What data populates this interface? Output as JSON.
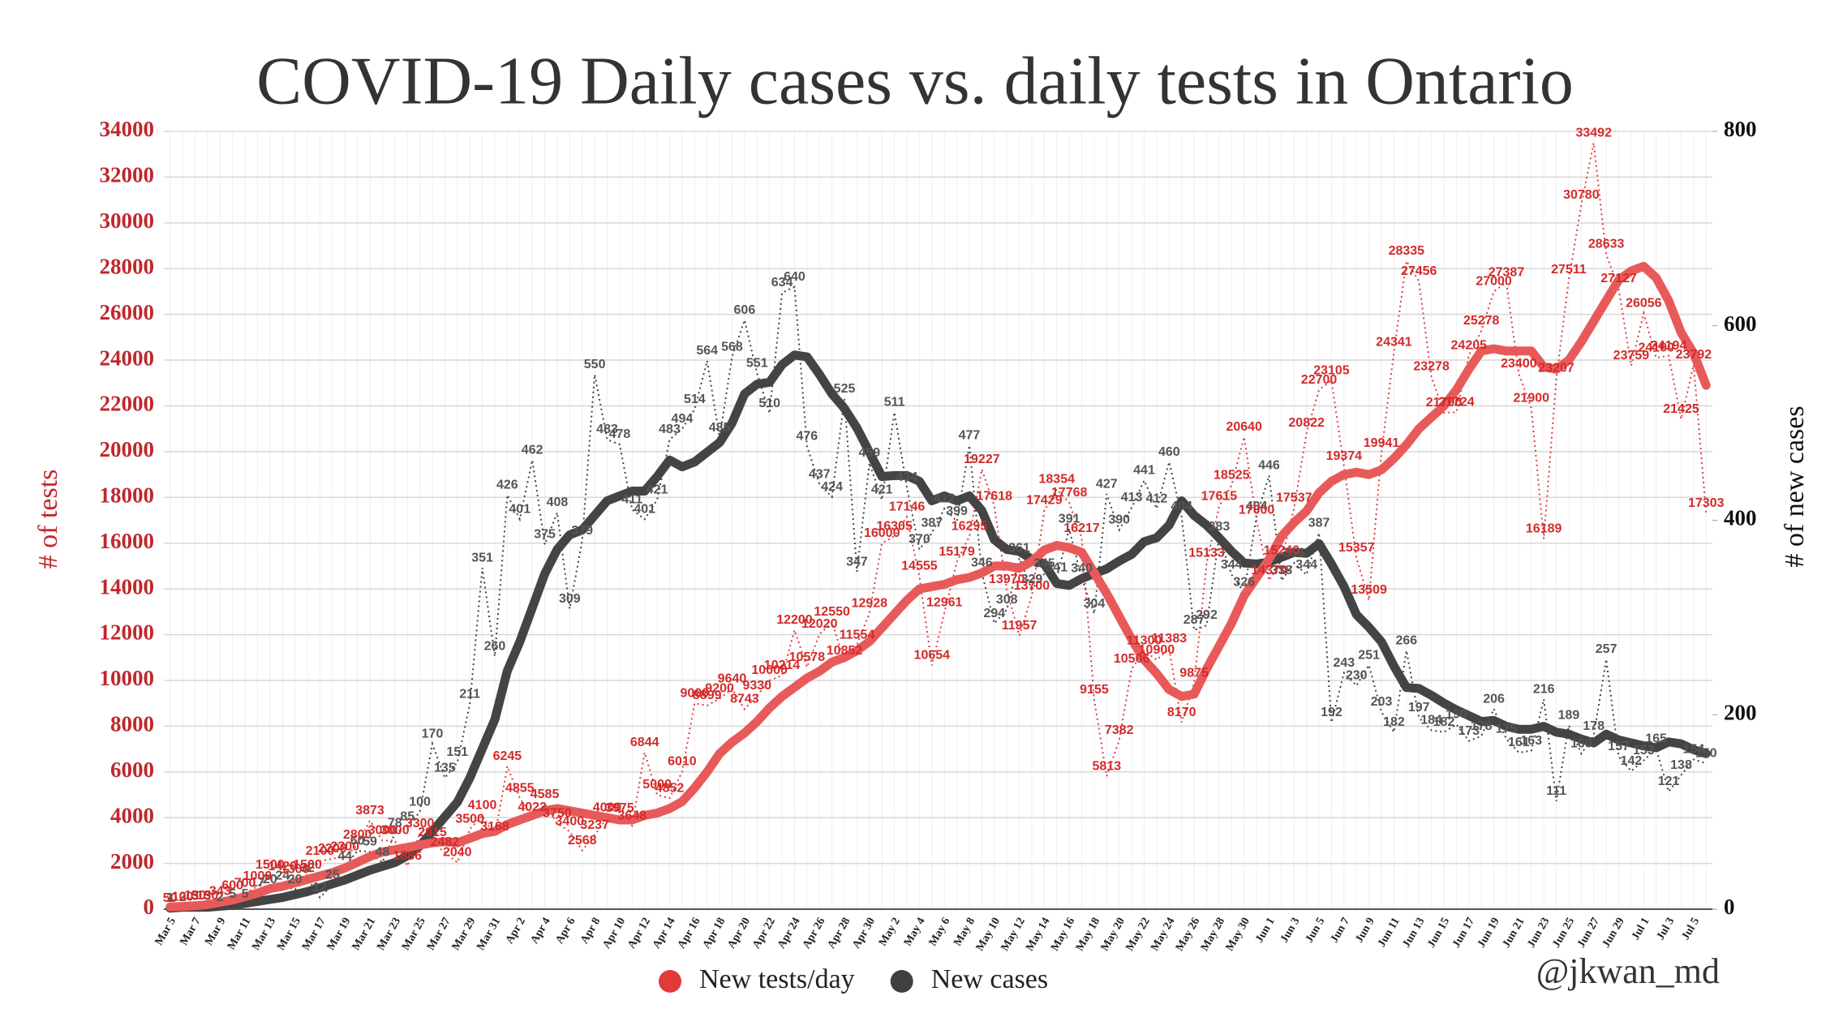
{
  "chart_data": {
    "type": "line",
    "title": "COVID-19 Daily cases vs. daily tests in Ontario",
    "y_label": "# of tests",
    "y2_label": "# of new cases",
    "credit": "@jkwan_md",
    "categories": [
      "Mar 5",
      null,
      "Mar 7",
      null,
      "Mar 9",
      null,
      "Mar 11",
      null,
      "Mar 13",
      null,
      "Mar 15",
      null,
      "Mar 17",
      null,
      "Mar 19",
      null,
      "Mar 21",
      null,
      "Mar 23",
      null,
      "Mar 25",
      null,
      "Mar 27",
      null,
      "Mar 29",
      null,
      "Mar 31",
      null,
      "Apr 2",
      null,
      "Apr 4",
      null,
      "Apr 6",
      null,
      "Apr 8",
      null,
      "Apr 10",
      null,
      "Apr 12",
      null,
      "Apr 14",
      null,
      "Apr 16",
      null,
      "Apr 18",
      null,
      "Apr 20",
      null,
      "Apr 22",
      null,
      "Apr 24",
      null,
      "Apr 26",
      null,
      "Apr 28",
      null,
      "Apr 30",
      null,
      "May 2",
      null,
      "May 4",
      null,
      "May 6",
      null,
      "May 8",
      null,
      "May 10",
      null,
      "May 12",
      null,
      "May 14",
      null,
      "May 16",
      null,
      "May 18",
      null,
      "May 20",
      null,
      "May 22",
      null,
      "May 24",
      null,
      "May 26",
      null,
      "May 28",
      null,
      "May 30",
      null,
      "Jun 1",
      null,
      "Jun 3",
      null,
      "Jun 5",
      null,
      "Jun 7",
      null,
      "Jun 9",
      null,
      "Jun 11",
      null,
      "Jun 13",
      null,
      "Jun 15",
      null,
      "Jun 17",
      null,
      "Jun 19",
      null,
      "Jun 21",
      null,
      "Jun 23",
      null,
      "Jun 25",
      null,
      "Jun 27",
      null,
      "Jun 29",
      null,
      "Jul 1",
      null,
      "Jul 3",
      null,
      "Jul 5",
      null
    ],
    "series": [
      {
        "name": "New tests/day",
        "color": "#e03a3a",
        "avg_color": "#e85a5a",
        "label_color": "#d42a2a",
        "values": [
          50,
          100,
          150,
          150,
          343,
          600,
          700,
          1000,
          1500,
          1420,
          1300,
          1500,
          2100,
          2200,
          2300,
          2800,
          3873,
          3000,
          3000,
          1886,
          3300,
          2915,
          2482,
          2040,
          3500,
          4100,
          3168,
          6245,
          4855,
          4022,
          4585,
          3750,
          3400,
          2568,
          3237,
          4000,
          3975,
          3648,
          6844,
          5000,
          4852,
          6010,
          9000,
          8899,
          9200,
          9640,
          8743,
          9330,
          10000,
          10214,
          12200,
          10578,
          12020,
          12550,
          10852,
          11554,
          12928,
          16000,
          16305,
          17146,
          14555,
          10654,
          12961,
          15179,
          16295,
          19227,
          17618,
          13970,
          11957,
          13700,
          17429,
          18354,
          17768,
          16217,
          9155,
          5813,
          7382,
          10506,
          11300,
          10900,
          11383,
          8170,
          9875,
          15133,
          17615,
          18525,
          20640,
          17000,
          14370,
          15240,
          17537,
          20822,
          22700,
          23105,
          19374,
          15357,
          13509,
          19941,
          24341,
          28335,
          27456,
          23278,
          21700,
          21724,
          24205,
          25278,
          27000,
          27387,
          23400,
          21900,
          16189,
          23207,
          27511,
          30780,
          33492,
          28633,
          27127,
          23759,
          26056,
          24100,
          24194,
          21425,
          23792,
          17303
        ],
        "avg_values": [
          100,
          120,
          150,
          200,
          300,
          400,
          550,
          700,
          900,
          1000,
          1150,
          1300,
          1450,
          1600,
          1800,
          2050,
          2300,
          2500,
          2600,
          2700,
          2800,
          2900,
          2950,
          2900,
          3100,
          3300,
          3400,
          3700,
          3900,
          4100,
          4300,
          4400,
          4300,
          4200,
          4100,
          4000,
          3900,
          3900,
          4100,
          4200,
          4400,
          4700,
          5300,
          6000,
          6800,
          7300,
          7700,
          8200,
          8800,
          9300,
          9700,
          10100,
          10400,
          10800,
          11000,
          11300,
          11700,
          12300,
          12900,
          13500,
          14000,
          14100,
          14200,
          14400,
          14500,
          14700,
          15000,
          15000,
          14900,
          15200,
          15700,
          15900,
          15800,
          15600,
          14700,
          13800,
          12800,
          11800,
          10900,
          10300,
          9600,
          9300,
          9400,
          10500,
          11500,
          12500,
          13700,
          14500,
          15300,
          16300,
          16900,
          17400,
          18200,
          18700,
          19000,
          19100,
          19000,
          19200,
          19700,
          20300,
          21000,
          21500,
          22000,
          22700,
          23600,
          24400,
          24500,
          24400,
          24400,
          24400,
          23700,
          23600,
          24000,
          24800,
          25700,
          26600,
          27500,
          27900,
          28100,
          27600,
          26600,
          25200,
          24300,
          22900
        ]
      },
      {
        "name": "New cases",
        "color": "#404040",
        "avg_color": "#444444",
        "label_color": "#555555",
        "axis": "y2",
        "values": [
          1,
          2,
          3,
          3,
          2,
          5,
          5,
          17,
          20,
          24,
          20,
          32,
          12,
          25,
          44,
          60,
          59,
          48,
          78,
          85,
          100,
          170,
          135,
          151,
          211,
          351,
          260,
          426,
          401,
          462,
          375,
          408,
          309,
          379,
          550,
          483,
          478,
          411,
          401,
          421,
          483,
          494,
          514,
          564,
          485,
          568,
          606,
          551,
          510,
          634,
          640,
          476,
          437,
          424,
          525,
          347,
          459,
          421,
          511,
          434,
          370,
          387,
          412,
          399,
          477,
          346,
          294,
          308,
          361,
          329,
          345,
          341,
          391,
          340,
          304,
          427,
          390,
          413,
          441,
          412,
          460,
          404,
          287,
          292,
          383,
          344,
          326,
          404,
          446,
          338,
          356,
          344,
          387,
          192,
          243,
          230,
          251,
          203,
          182,
          266,
          197,
          184,
          182,
          190,
          173,
          178,
          206,
          175,
          161,
          163,
          216,
          111,
          189,
          160,
          178,
          257,
          157,
          142,
          153,
          165,
          121,
          138,
          154,
          150
        ],
        "avg_values": [
          1,
          2,
          2,
          2,
          3,
          4,
          6,
          8,
          10,
          12,
          15,
          18,
          22,
          26,
          30,
          35,
          40,
          44,
          48,
          55,
          65,
          80,
          95,
          110,
          135,
          165,
          195,
          245,
          275,
          310,
          345,
          370,
          385,
          390,
          405,
          420,
          425,
          430,
          430,
          445,
          462,
          455,
          460,
          470,
          480,
          500,
          530,
          540,
          542,
          560,
          570,
          568,
          550,
          530,
          515,
          495,
          470,
          445,
          446,
          446,
          440,
          420,
          425,
          420,
          425,
          410,
          380,
          370,
          368,
          360,
          355,
          335,
          333,
          340,
          345,
          350,
          358,
          365,
          378,
          382,
          395,
          420,
          405,
          395,
          382,
          368,
          356,
          355,
          357,
          362,
          367,
          366,
          376,
          355,
          332,
          303,
          290,
          275,
          250,
          228,
          227,
          220,
          212,
          205,
          199,
          193,
          194,
          188,
          185,
          185,
          188,
          182,
          180,
          175,
          171,
          180,
          174,
          171,
          168,
          166,
          172,
          170,
          164,
          160
        ]
      }
    ],
    "ylim": [
      0,
      34000
    ],
    "yticks": [
      0,
      2000,
      4000,
      6000,
      8000,
      10000,
      12000,
      14000,
      16000,
      18000,
      20000,
      22000,
      24000,
      26000,
      28000,
      30000,
      32000,
      34000
    ],
    "y2lim": [
      0,
      800
    ],
    "y2ticks": [
      0,
      200,
      400,
      600,
      800
    ],
    "grid": true
  }
}
